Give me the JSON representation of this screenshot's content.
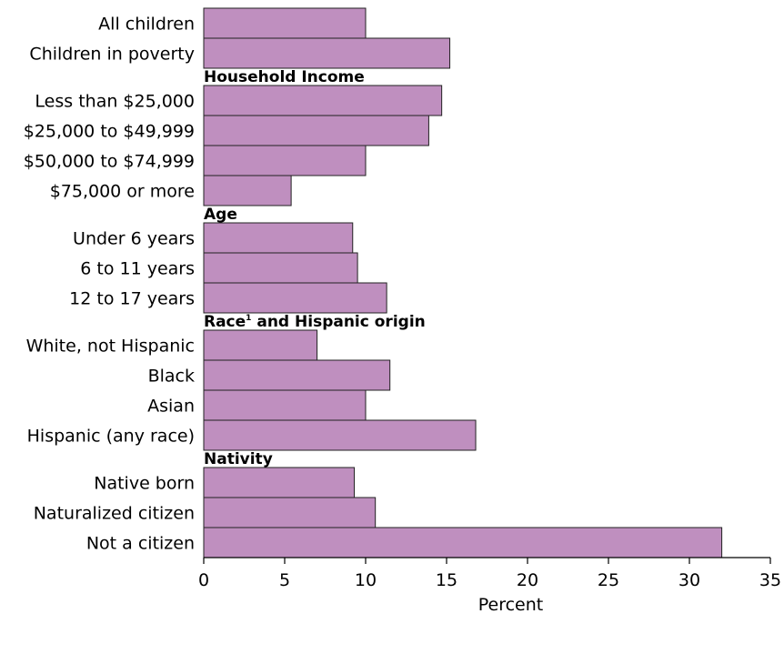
{
  "chart_data": {
    "type": "bar",
    "orientation": "horizontal",
    "xlabel": "Percent",
    "xlim": [
      0,
      35
    ],
    "xticks": [
      0,
      5,
      10,
      15,
      20,
      25,
      30,
      35
    ],
    "bar_color": "#bf8fbf",
    "grid": false,
    "legend": "none",
    "groups": [
      {
        "heading": "",
        "heading_sup": "",
        "heading_rest": "",
        "items": [
          {
            "label": "All children",
            "value": 10
          },
          {
            "label": "Children in poverty",
            "value": 15.2
          }
        ]
      },
      {
        "heading": "Household Income",
        "heading_sup": "",
        "heading_rest": "",
        "items": [
          {
            "label": "Less than $25,000",
            "value": 14.7
          },
          {
            "label": "$25,000 to $49,999",
            "value": 13.9
          },
          {
            "label": "$50,000 to $74,999",
            "value": 10
          },
          {
            "label": "$75,000 or more",
            "value": 5.4
          }
        ]
      },
      {
        "heading": "Age",
        "heading_sup": "",
        "heading_rest": "",
        "items": [
          {
            "label": "Under 6 years",
            "value": 9.2
          },
          {
            "label": "6 to 11 years",
            "value": 9.5
          },
          {
            "label": "12 to 17 years",
            "value": 11.3
          }
        ]
      },
      {
        "heading": "Race",
        "heading_sup": "1",
        "heading_rest": " and Hispanic origin",
        "items": [
          {
            "label": "White, not Hispanic",
            "value": 7
          },
          {
            "label": "Black",
            "value": 11.5
          },
          {
            "label": "Asian",
            "value": 10
          },
          {
            "label": "Hispanic (any race)",
            "value": 16.8
          }
        ]
      },
      {
        "heading": "Nativity",
        "heading_sup": "",
        "heading_rest": "",
        "items": [
          {
            "label": "Native born",
            "value": 9.3
          },
          {
            "label": "Naturalized citizen",
            "value": 10.6
          },
          {
            "label": "Not a citizen",
            "value": 32
          }
        ]
      }
    ]
  }
}
